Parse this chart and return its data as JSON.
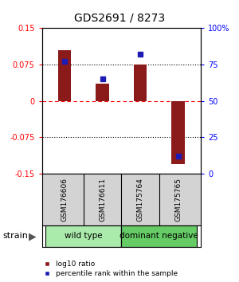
{
  "title": "GDS2691 / 8273",
  "samples": [
    "GSM176606",
    "GSM176611",
    "GSM175764",
    "GSM175765"
  ],
  "log10_ratios": [
    0.105,
    0.035,
    0.075,
    -0.13
  ],
  "percentile_ranks": [
    77,
    65,
    82,
    12
  ],
  "bar_color": "#8B1A1A",
  "point_color": "#1C1CB5",
  "ylim_left": [
    -0.15,
    0.15
  ],
  "ylim_right": [
    0,
    100
  ],
  "yticks_left": [
    -0.15,
    -0.075,
    0,
    0.075,
    0.15
  ],
  "ytick_labels_left": [
    "-0.15",
    "-0.075",
    "0",
    "0.075",
    "0.15"
  ],
  "yticks_right": [
    0,
    25,
    50,
    75,
    100
  ],
  "ytick_labels_right": [
    "0",
    "25",
    "50",
    "75",
    "100%"
  ],
  "groups": [
    {
      "label": "wild type",
      "samples": [
        0,
        1
      ],
      "color": "#AAEAAA"
    },
    {
      "label": "dominant negative",
      "samples": [
        2,
        3
      ],
      "color": "#66CC66"
    }
  ],
  "strain_label": "strain",
  "legend_ratio_label": "log10 ratio",
  "legend_pct_label": "percentile rank within the sample",
  "bar_width": 0.35,
  "background_color": "#ffffff",
  "title_fontsize": 10,
  "tick_fontsize": 7,
  "sample_fontsize": 6.5,
  "group_fontsize": 7.5,
  "legend_fontsize": 6.5
}
